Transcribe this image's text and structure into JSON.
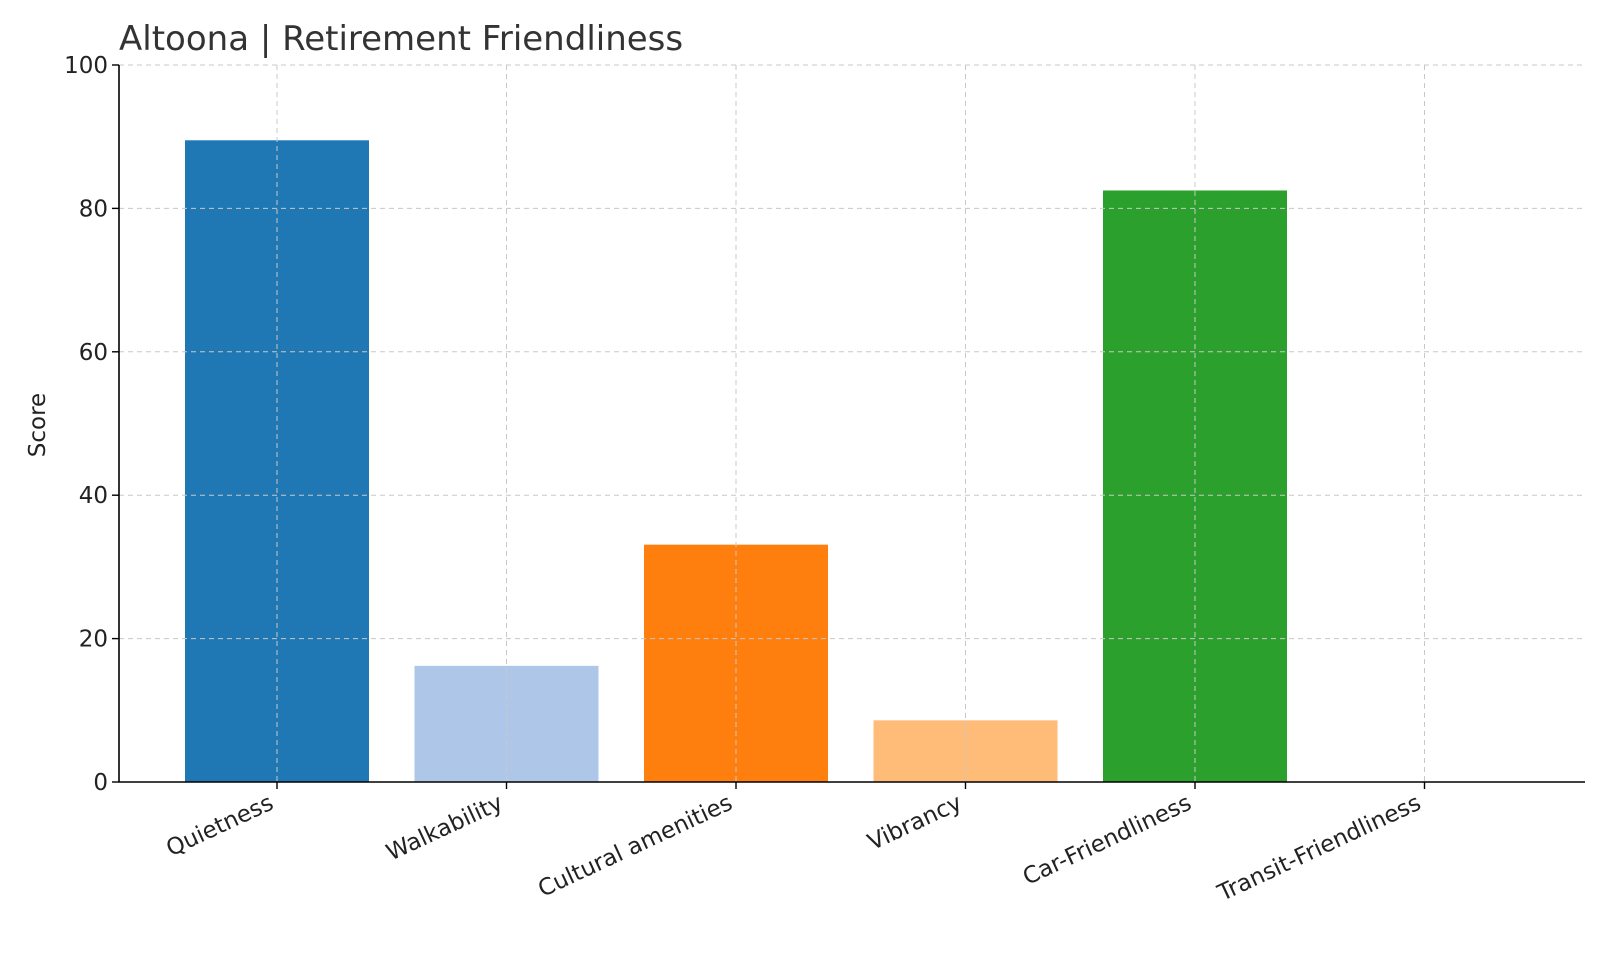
{
  "chart_data": {
    "type": "bar",
    "title": "Altoona | Retirement Friendliness",
    "xlabel": "",
    "ylabel": "Score",
    "ylim": [
      0,
      100
    ],
    "yticks": [
      0,
      20,
      40,
      60,
      80,
      100
    ],
    "grid": true,
    "categories": [
      "Quietness",
      "Walkability",
      "Cultural amenities",
      "Vibrancy",
      "Car-Friendliness",
      "Transit-Friendliness"
    ],
    "values": [
      89.5,
      16.2,
      33.1,
      8.6,
      82.5,
      0
    ],
    "colors": [
      "#1f77b4",
      "#aec7e8",
      "#ff7f0e",
      "#ffbb78",
      "#2ca02c",
      "#98df8a"
    ]
  }
}
